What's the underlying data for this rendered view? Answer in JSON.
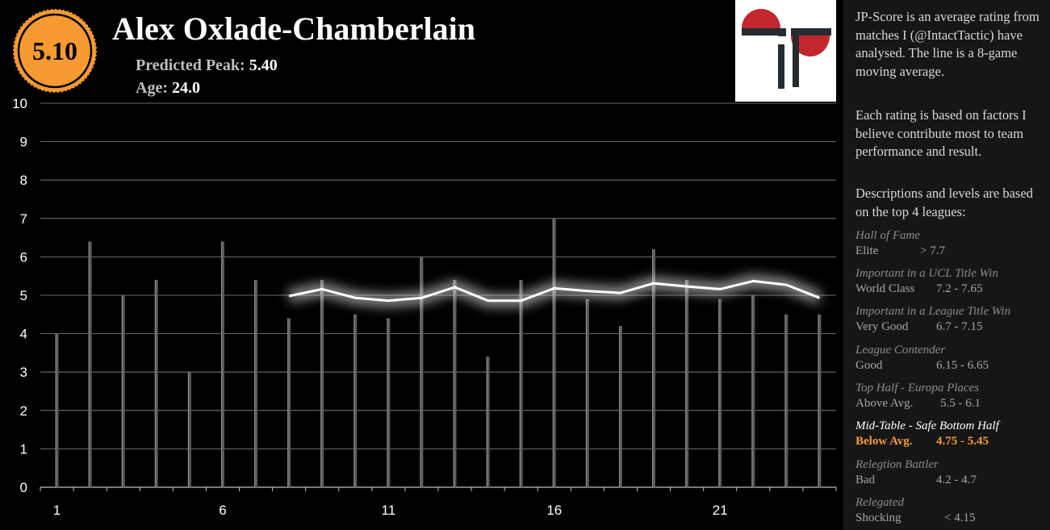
{
  "player": {
    "name": "Alex Oxlade-Chamberlain",
    "score": "5.10",
    "peak_label": "Predicted Peak:",
    "peak_value": "5.40",
    "age_label": "Age:",
    "age_value": "24.0"
  },
  "colors": {
    "badge_fill": "#f79a32",
    "highlight": "#f79a32",
    "logo_red": "#c1272d",
    "logo_dark": "#262b30",
    "bar": "#595959",
    "line": "#ffffff"
  },
  "sidebar": {
    "intro1": "JP-Score is an average rating from matches I (@IntactTactic) have analysed. The line is a 8-game moving average.",
    "intro2": "Each rating is based on factors I believe contribute most to team performance and result.",
    "intro3": "Descriptions and levels are based on the top 4 leagues:",
    "levels": [
      {
        "title": "Hall of Fame",
        "name": "Elite",
        "range": "> 7.7"
      },
      {
        "title": "Important in a UCL Title Win",
        "name": "World Class",
        "range": "7.2 - 7.65"
      },
      {
        "title": "Important in a League Title Win",
        "name": "Very Good",
        "range": "6.7 - 7.15"
      },
      {
        "title": "League Contender",
        "name": "Good",
        "range": "6.15 - 6.65"
      },
      {
        "title": "Top Half - Europa Places",
        "name": "Above Avg.",
        "range": "5.5 - 6.1"
      },
      {
        "title": "Mid-Table - Safe Bottom Half",
        "name": "Below Avg.",
        "range": "4.75 - 5.45"
      },
      {
        "title": "Relegtion Battler",
        "name": "Bad",
        "range": "4.2 - 4.7"
      },
      {
        "title": "Relegated",
        "name": "Shocking",
        "range": "< 4.15"
      }
    ]
  },
  "chart_data": {
    "type": "bar",
    "ylim": [
      0,
      10
    ],
    "yticks": [
      "0",
      "1",
      "2",
      "3",
      "4",
      "5",
      "6",
      "7",
      "8",
      "9",
      "10"
    ],
    "x": [
      1,
      2,
      3,
      4,
      5,
      6,
      7,
      8,
      9,
      10,
      11,
      12,
      13,
      14,
      15,
      16,
      17,
      18,
      19,
      20,
      21,
      22,
      23,
      24
    ],
    "xtick_labels": [
      {
        "x": 1,
        "label": "1"
      },
      {
        "x": 6,
        "label": "6"
      },
      {
        "x": 11,
        "label": "11"
      },
      {
        "x": 16,
        "label": "16"
      },
      {
        "x": 21,
        "label": "21"
      }
    ],
    "grid": true,
    "series": [
      {
        "kind": "bar",
        "values": [
          4.0,
          6.4,
          5.0,
          5.4,
          3.0,
          6.4,
          5.4,
          4.4,
          5.4,
          4.5,
          4.4,
          6.0,
          5.4,
          3.4,
          5.4,
          7.0,
          4.9,
          4.2,
          6.2,
          5.4,
          4.9,
          5.0,
          4.5,
          4.5
        ]
      },
      {
        "kind": "line",
        "values": [
          null,
          null,
          null,
          null,
          null,
          null,
          null,
          4.98,
          5.16,
          4.93,
          4.86,
          4.93,
          5.21,
          4.86,
          4.86,
          5.18,
          5.11,
          5.06,
          5.31,
          5.23,
          5.16,
          5.37,
          5.27,
          4.93
        ]
      }
    ]
  }
}
